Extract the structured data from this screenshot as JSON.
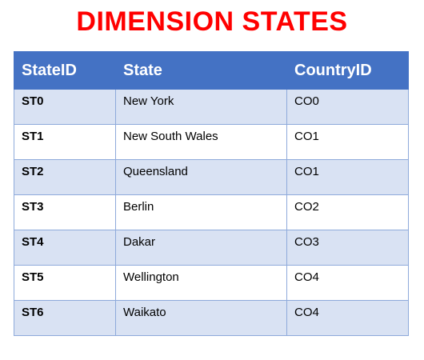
{
  "title": "DIMENSION STATES",
  "table": {
    "headers": [
      "StateID",
      "State",
      "CountryID"
    ],
    "rows": [
      [
        "ST0",
        "New York",
        "CO0"
      ],
      [
        "ST1",
        "New South Wales",
        "CO1"
      ],
      [
        "ST2",
        "Queensland",
        "CO1"
      ],
      [
        "ST3",
        "Berlin",
        "CO2"
      ],
      [
        "ST4",
        "Dakar",
        "CO3"
      ],
      [
        "ST5",
        "Wellington",
        "CO4"
      ],
      [
        "ST6",
        "Waikato",
        "CO4"
      ]
    ]
  },
  "colors": {
    "title": "#ff0000",
    "header_bg": "#4472c4",
    "band_row": "#d9e2f3",
    "grid": "#8eaadb"
  }
}
